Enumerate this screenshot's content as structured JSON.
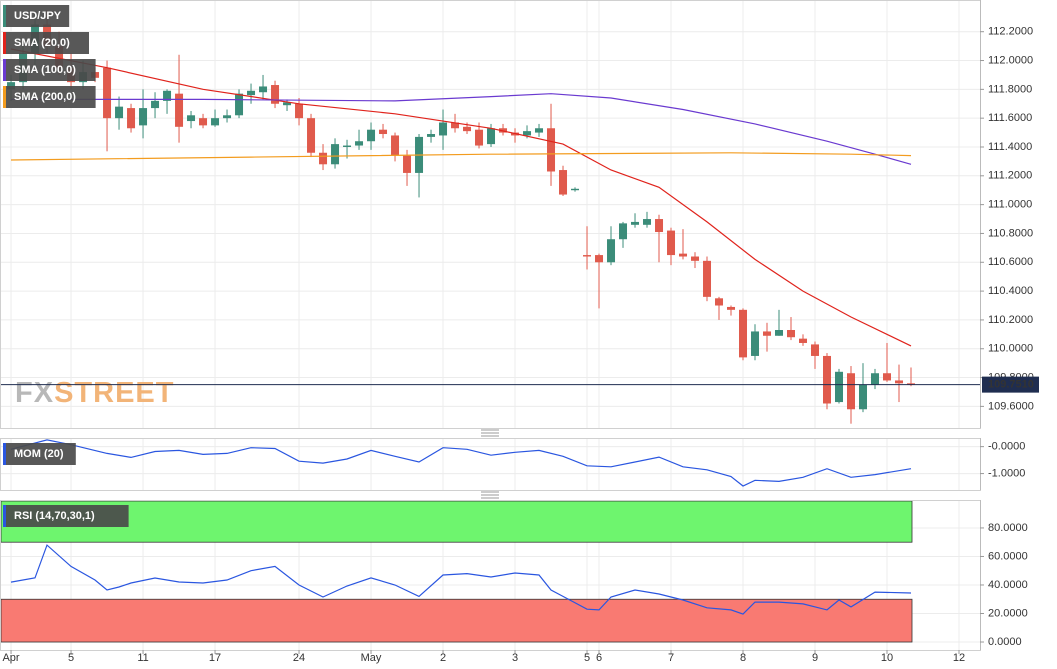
{
  "watermark": {
    "part1": "FX",
    "part2": "STREET"
  },
  "chart_data": [
    {
      "type": "candlestick",
      "xlim": [
        -0.92,
        80.75
      ],
      "ylim": [
        109.45,
        112.42
      ],
      "yticks": [
        {
          "value": 109.6,
          "label": "109.6000"
        },
        {
          "value": 109.8,
          "label": "109.8000"
        },
        {
          "value": 110.0,
          "label": "110.0000"
        },
        {
          "value": 110.2,
          "label": "110.2000"
        },
        {
          "value": 110.4,
          "label": "110.4000"
        },
        {
          "value": 110.6,
          "label": "110.6000"
        },
        {
          "value": 110.8,
          "label": "110.8000"
        },
        {
          "value": 111.0,
          "label": "111.0000"
        },
        {
          "value": 111.2,
          "label": "111.2000"
        },
        {
          "value": 111.4,
          "label": "111.4000"
        },
        {
          "value": 111.6,
          "label": "111.6000"
        },
        {
          "value": 111.8,
          "label": "111.8000"
        },
        {
          "value": 112.0,
          "label": "112.0000"
        },
        {
          "value": 112.2,
          "label": "112.2000"
        }
      ],
      "current_price": {
        "value": 109.751,
        "label": "109.7510"
      },
      "current_color": "#1f2d50",
      "grid": true,
      "series": [
        {
          "name": "USD/JPY",
          "kind": "ohlc",
          "color": "#3b8c79",
          "up_color": "#3b8c79",
          "down_color": "#e05a4c",
          "x": [
            0,
            1,
            2,
            3,
            4,
            5,
            6,
            7,
            8,
            9,
            10,
            11,
            12,
            13,
            14,
            15,
            16,
            17,
            18,
            19,
            20,
            21,
            22,
            23,
            24,
            25,
            26,
            27,
            28,
            29,
            30,
            31,
            32,
            33,
            34,
            35,
            36,
            37,
            38,
            39,
            40,
            41,
            42,
            43,
            44,
            45,
            46,
            47,
            48,
            49,
            50,
            51,
            52,
            53,
            54,
            55,
            56,
            57,
            58,
            59,
            60,
            61,
            62,
            63,
            64,
            65,
            66,
            67,
            68,
            69,
            70,
            71,
            72,
            73,
            74,
            75
          ],
          "open": [
            111.8,
            111.85,
            112.05,
            112.25,
            112.1,
            111.95,
            111.85,
            111.92,
            111.95,
            111.6,
            111.67,
            111.55,
            111.67,
            111.72,
            111.77,
            111.58,
            111.6,
            111.55,
            111.6,
            111.62,
            111.76,
            111.78,
            111.83,
            111.69,
            111.7,
            111.6,
            111.36,
            111.28,
            111.4,
            111.41,
            111.44,
            111.52,
            111.48,
            111.34,
            111.22,
            111.47,
            111.48,
            111.57,
            111.54,
            111.52,
            111.42,
            111.53,
            111.5,
            111.48,
            111.5,
            111.53,
            111.24,
            111.1,
            110.65,
            110.65,
            110.6,
            110.76,
            110.86,
            110.86,
            110.9,
            110.82,
            110.66,
            110.64,
            110.61,
            110.35,
            110.29,
            110.27,
            109.95,
            110.12,
            110.09,
            110.13,
            110.07,
            110.03,
            109.95,
            109.63,
            109.83,
            109.58,
            109.75,
            109.83,
            109.78,
            109.76
          ],
          "high": [
            111.9,
            112.1,
            112.33,
            112.35,
            112.2,
            112.05,
            112.0,
            111.95,
            112.0,
            111.75,
            111.7,
            111.8,
            111.78,
            111.8,
            112.04,
            111.65,
            111.63,
            111.66,
            111.66,
            111.8,
            111.84,
            111.9,
            111.86,
            111.73,
            111.74,
            111.63,
            111.42,
            111.46,
            111.45,
            111.52,
            111.57,
            111.56,
            111.5,
            111.38,
            111.49,
            111.52,
            111.66,
            111.63,
            111.57,
            111.57,
            111.56,
            111.56,
            111.53,
            111.55,
            111.56,
            111.7,
            111.27,
            111.12,
            110.85,
            110.66,
            110.85,
            110.88,
            110.94,
            110.95,
            110.93,
            110.84,
            110.83,
            110.67,
            110.64,
            110.36,
            110.3,
            110.28,
            110.17,
            110.18,
            110.27,
            110.22,
            110.1,
            110.05,
            109.97,
            109.86,
            109.88,
            109.9,
            109.86,
            110.04,
            109.89,
            109.87
          ],
          "low": [
            111.72,
            111.8,
            111.95,
            112.05,
            111.9,
            111.8,
            111.8,
            111.85,
            111.37,
            111.52,
            111.5,
            111.46,
            111.6,
            111.63,
            111.43,
            111.53,
            111.53,
            111.54,
            111.57,
            111.6,
            111.7,
            111.73,
            111.67,
            111.65,
            111.55,
            111.33,
            111.24,
            111.25,
            111.32,
            111.38,
            111.38,
            111.46,
            111.3,
            111.13,
            111.05,
            111.43,
            111.38,
            111.5,
            111.49,
            111.39,
            111.4,
            111.48,
            111.43,
            111.46,
            111.47,
            111.13,
            111.06,
            111.09,
            110.55,
            110.28,
            110.58,
            110.7,
            110.84,
            110.84,
            110.6,
            110.58,
            110.62,
            110.56,
            110.33,
            110.2,
            110.23,
            109.92,
            109.92,
            109.98,
            110.09,
            110.06,
            110.02,
            109.86,
            109.58,
            109.62,
            109.48,
            109.56,
            109.72,
            109.77,
            109.63,
            109.74
          ],
          "close": [
            111.85,
            112.05,
            112.25,
            112.1,
            111.95,
            111.85,
            111.92,
            111.88,
            111.6,
            111.68,
            111.53,
            111.67,
            111.72,
            111.79,
            111.54,
            111.62,
            111.55,
            111.6,
            111.62,
            111.77,
            111.79,
            111.82,
            111.7,
            111.71,
            111.6,
            111.36,
            111.28,
            111.42,
            111.41,
            111.44,
            111.52,
            111.49,
            111.34,
            111.22,
            111.47,
            111.49,
            111.57,
            111.53,
            111.51,
            111.41,
            111.53,
            111.5,
            111.48,
            111.51,
            111.53,
            111.23,
            111.07,
            111.11,
            110.64,
            110.6,
            110.76,
            110.87,
            110.88,
            110.9,
            110.81,
            110.65,
            110.64,
            110.61,
            110.36,
            110.3,
            110.27,
            109.94,
            110.12,
            110.09,
            110.13,
            110.08,
            110.04,
            109.95,
            109.62,
            109.84,
            109.58,
            109.75,
            109.83,
            109.78,
            109.76,
            109.75
          ]
        },
        {
          "name": "SMA (20,0)",
          "kind": "line",
          "color": "#e0231c",
          "x": [
            0,
            8,
            16,
            24,
            32,
            40,
            46,
            50,
            54,
            58,
            62,
            66,
            70,
            75
          ],
          "values": [
            112.08,
            111.95,
            111.8,
            111.7,
            111.63,
            111.53,
            111.42,
            111.24,
            111.12,
            110.88,
            110.62,
            110.4,
            110.22,
            110.02
          ]
        },
        {
          "name": "SMA (100,0)",
          "kind": "line",
          "color": "#6a3ad0",
          "x": [
            0,
            16,
            32,
            40,
            45,
            50,
            56,
            62,
            68,
            72,
            75
          ],
          "values": [
            111.73,
            111.73,
            111.72,
            111.75,
            111.77,
            111.74,
            111.66,
            111.56,
            111.44,
            111.35,
            111.28
          ]
        },
        {
          "name": "SMA (200,0)",
          "kind": "line",
          "color": "#f39c1f",
          "x": [
            0,
            20,
            40,
            60,
            70,
            75
          ],
          "values": [
            111.31,
            111.33,
            111.35,
            111.36,
            111.35,
            111.34
          ]
        }
      ]
    },
    {
      "type": "line",
      "xlim": [
        -0.92,
        80.75
      ],
      "ylim": [
        -1.61,
        0.32
      ],
      "yticks": [
        {
          "value": 0,
          "label": "-0.0000"
        },
        {
          "value": -1,
          "label": "-1.0000"
        }
      ],
      "grid": true,
      "series": [
        {
          "name": "MOM (20)",
          "color": "#2a56e0",
          "x": [
            0,
            3,
            5,
            8,
            10,
            12,
            14,
            16,
            18,
            20,
            22,
            24,
            26,
            28,
            30,
            32,
            34,
            36,
            38,
            40,
            42,
            44,
            46,
            48,
            50,
            52,
            54,
            56,
            58,
            60,
            61,
            62,
            64,
            66,
            68,
            70,
            72,
            75
          ],
          "values": [
            -0.1,
            0.25,
            0.07,
            -0.25,
            -0.4,
            -0.18,
            -0.14,
            -0.29,
            -0.25,
            -0.04,
            -0.07,
            -0.54,
            -0.61,
            -0.46,
            -0.14,
            -0.36,
            -0.57,
            -0.04,
            -0.1,
            -0.32,
            -0.21,
            -0.14,
            -0.36,
            -0.71,
            -0.75,
            -0.57,
            -0.39,
            -0.75,
            -0.86,
            -1.11,
            -1.46,
            -1.25,
            -1.29,
            -1.14,
            -0.82,
            -1.14,
            -1.04,
            -0.82
          ]
        }
      ]
    },
    {
      "type": "line",
      "xlim": [
        -0.92,
        80.75
      ],
      "ylim": [
        -5.6,
        99.6
      ],
      "yticks": [
        {
          "value": 0,
          "label": "0.0000"
        },
        {
          "value": 20,
          "label": "20.0000"
        },
        {
          "value": 40,
          "label": "40.0000"
        },
        {
          "value": 60,
          "label": "60.0000"
        },
        {
          "value": 80,
          "label": "80.0000"
        }
      ],
      "xticks": [
        {
          "value": 0,
          "label": "Apr"
        },
        5,
        11,
        17,
        24,
        {
          "value": 30,
          "label": "May"
        },
        {
          "value": 36,
          "label": "2"
        },
        {
          "value": 42,
          "label": "3"
        },
        {
          "value": 48,
          "label": "5"
        },
        {
          "value": 49,
          "label": "6"
        },
        {
          "value": 55,
          "label": "7"
        },
        {
          "value": 61,
          "label": "8"
        },
        {
          "value": 67,
          "label": "9"
        },
        {
          "value": 73,
          "label": "10"
        },
        {
          "value": 79,
          "label": "12"
        }
      ],
      "overbought": 70,
      "oversold": 30,
      "overbought_color": "#6ef56e",
      "oversold_color": "#f97a72",
      "grid": true,
      "series": [
        {
          "name": "RSI (14,70,30,1)",
          "color": "#2a56e0",
          "x": [
            0,
            2,
            3,
            5,
            7,
            8,
            9,
            10,
            12,
            14,
            16,
            18,
            20,
            22,
            24,
            26,
            28,
            30,
            32,
            34,
            36,
            38,
            40,
            42,
            44,
            45,
            46,
            48,
            49,
            50,
            52,
            54,
            56,
            58,
            60,
            61,
            62,
            64,
            66,
            68,
            69,
            70,
            72,
            75
          ],
          "values": [
            42,
            45,
            68,
            53,
            43.5,
            36.5,
            38.6,
            41.4,
            44.9,
            42.1,
            41.4,
            43.5,
            50,
            53,
            40,
            31.6,
            39.3,
            45,
            40,
            32,
            47,
            48,
            45.6,
            48.4,
            47,
            36.5,
            32,
            23,
            22.5,
            31.6,
            36.5,
            33.7,
            29.5,
            24,
            22.5,
            19.6,
            28,
            28,
            26.7,
            22.5,
            29.5,
            24.6,
            35,
            34.4
          ]
        }
      ]
    }
  ]
}
